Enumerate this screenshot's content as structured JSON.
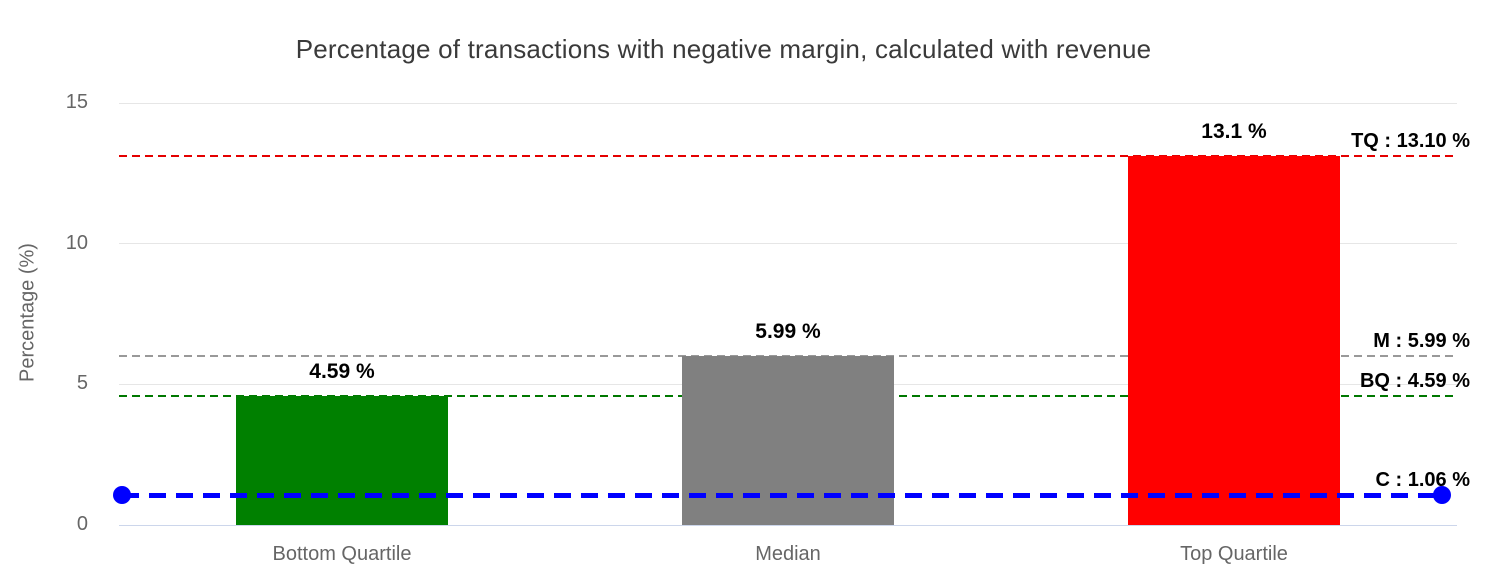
{
  "chart_data": {
    "type": "bar",
    "title": "Percentage of transactions with negative margin, calculated with revenue",
    "xlabel": "",
    "ylabel": "Percentage (%)",
    "categories": [
      "Bottom Quartile",
      "Median",
      "Top Quartile"
    ],
    "values": [
      4.59,
      5.99,
      13.1
    ],
    "bar_labels": [
      "4.59 %",
      "5.99 %",
      "13.1 %"
    ],
    "bar_colors": [
      "#008000",
      "#808080",
      "#ff0000"
    ],
    "ylim": [
      0,
      15
    ],
    "yticks": [
      0,
      5,
      10,
      15
    ],
    "grid": true,
    "legend": "none",
    "grid_color": "#e6e6e6",
    "axis_line_color": "#ccd6eb",
    "tick_text_color": "#666666",
    "plot_lines": [
      {
        "id": "TQ",
        "label": "TQ : 13.10 %",
        "value": 13.1,
        "color": "#e40000",
        "style": "thin-dash"
      },
      {
        "id": "M",
        "label": "M : 5.99 %",
        "value": 5.99,
        "color": "#999999",
        "style": "thin-dash"
      },
      {
        "id": "BQ",
        "label": "BQ : 4.59 %",
        "value": 4.59,
        "color": "#007800",
        "style": "thin-dash"
      },
      {
        "id": "C",
        "label": "C : 1.06 %",
        "value": 1.06,
        "color": "#0000ff",
        "style": "thick-dash",
        "markers": true
      }
    ]
  }
}
